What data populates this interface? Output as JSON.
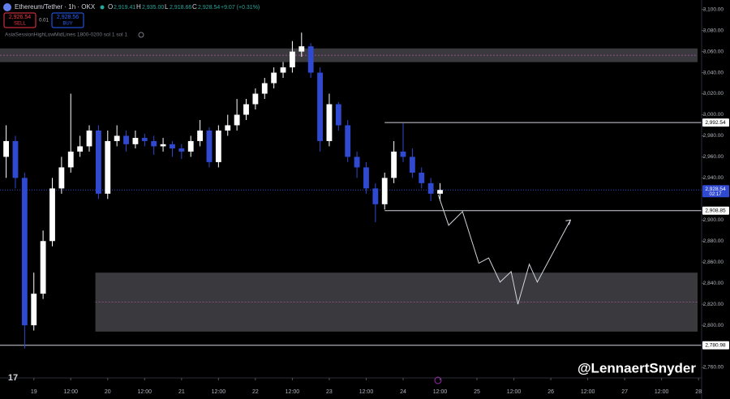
{
  "header": {
    "symbol": "Ethereum/Tether · 1h · OKX",
    "o_label": "O",
    "o": "2,919.41",
    "h_label": "H",
    "h": "2,935.00",
    "l_label": "L",
    "l": "2,918.66",
    "c_label": "C",
    "c": "2,928.54",
    "change": "+9.07 (+0.31%)"
  },
  "trade": {
    "sell_price": "2,926.54",
    "sell_label": "SELL",
    "qty": "0.01",
    "buy_price": "2,928.56",
    "buy_label": "BUY"
  },
  "indicator": "AsiaSessionHighLowMidLines 1800-0200 sol 1 sol 1",
  "watermark": "@LennaertSnyder",
  "chart_data": {
    "type": "candlestick",
    "x": [
      -9,
      -6,
      -3,
      0,
      3,
      6,
      9,
      12,
      15,
      18,
      21,
      24,
      27,
      30,
      33,
      36,
      39,
      42,
      45,
      48,
      51,
      54,
      57,
      60,
      63,
      66,
      69,
      72,
      75,
      78,
      81,
      84,
      87,
      90,
      93,
      96,
      99,
      102,
      105,
      108,
      111,
      114,
      117,
      120,
      123,
      126,
      129,
      132
    ],
    "open": [
      2960,
      2975,
      2940,
      2800,
      2830,
      2880,
      2930,
      2950,
      2965,
      2970,
      2985,
      2925,
      2975,
      2980,
      2972,
      2978,
      2975,
      2970,
      2972,
      2968,
      2965,
      2975,
      2985,
      2955,
      2985,
      2990,
      3000,
      3010,
      3020,
      3030,
      3040,
      3045,
      3060,
      3065,
      3040,
      2975,
      3010,
      2990,
      2960,
      2950,
      2930,
      2915,
      2940,
      2965,
      2960,
      2945,
      2935,
      2925
    ],
    "high": [
      2990,
      2980,
      2945,
      2850,
      2890,
      2940,
      2960,
      3020,
      2980,
      2990,
      2990,
      2985,
      2990,
      2985,
      2985,
      2982,
      2980,
      2978,
      2975,
      2972,
      2980,
      2995,
      2988,
      2990,
      3000,
      3015,
      3015,
      3025,
      3035,
      3045,
      3050,
      3070,
      3078,
      3068,
      3045,
      3020,
      3012,
      2995,
      2965,
      2955,
      2935,
      2945,
      2975,
      2992,
      2968,
      2950,
      2940,
      2935
    ],
    "low": [
      2940,
      2930,
      2778,
      2795,
      2825,
      2875,
      2925,
      2945,
      2960,
      2965,
      2920,
      2920,
      2970,
      2965,
      2968,
      2970,
      2962,
      2965,
      2960,
      2958,
      2960,
      2970,
      2950,
      2950,
      2980,
      2985,
      2995,
      3005,
      3015,
      3025,
      3035,
      3040,
      3055,
      3035,
      2965,
      2970,
      2985,
      2955,
      2940,
      2925,
      2898,
      2910,
      2935,
      2955,
      2940,
      2930,
      2918,
      2918
    ],
    "close": [
      2975,
      2940,
      2800,
      2830,
      2880,
      2930,
      2950,
      2965,
      2970,
      2985,
      2925,
      2975,
      2980,
      2972,
      2978,
      2975,
      2970,
      2972,
      2968,
      2965,
      2975,
      2985,
      2955,
      2985,
      2990,
      3000,
      3010,
      3020,
      3030,
      3040,
      3045,
      3060,
      3065,
      3040,
      2975,
      3010,
      2990,
      2960,
      2950,
      2930,
      2915,
      2940,
      2965,
      2960,
      2945,
      2935,
      2925,
      2928.54
    ],
    "up_color": "#ffffff",
    "down_color": "#2f49d1",
    "xlim": [
      -11,
      217
    ],
    "ylim": [
      2750,
      3109
    ],
    "xticks": [
      {
        "value": 0,
        "label": "19"
      },
      {
        "value": 12,
        "label": "12:00"
      },
      {
        "value": 24,
        "label": "20"
      },
      {
        "value": 36,
        "label": "12:00"
      },
      {
        "value": 48,
        "label": "21"
      },
      {
        "value": 60,
        "label": "12:00"
      },
      {
        "value": 72,
        "label": "22"
      },
      {
        "value": 84,
        "label": "12:00"
      },
      {
        "value": 96,
        "label": "23"
      },
      {
        "value": 108,
        "label": "12:00"
      },
      {
        "value": 120,
        "label": "24"
      },
      {
        "value": 132,
        "label": "12:00"
      },
      {
        "value": 144,
        "label": "25"
      },
      {
        "value": 156,
        "label": "12:00"
      },
      {
        "value": 168,
        "label": "26"
      },
      {
        "value": 180,
        "label": "12:00"
      },
      {
        "value": 192,
        "label": "27"
      },
      {
        "value": 204,
        "label": "12:00"
      },
      {
        "value": 216,
        "label": "28"
      }
    ],
    "yticks": [
      {
        "value": 3100,
        "label": "3,100.00"
      },
      {
        "value": 3080,
        "label": "3,080.00"
      },
      {
        "value": 3060,
        "label": "3,060.00"
      },
      {
        "value": 3040,
        "label": "3,040.00"
      },
      {
        "value": 3020,
        "label": "3,020.00"
      },
      {
        "value": 3000,
        "label": "3,000.00"
      },
      {
        "value": 2980,
        "label": "2,980.00"
      },
      {
        "value": 2960,
        "label": "2,960.00"
      },
      {
        "value": 2940,
        "label": "2,940.00"
      },
      {
        "value": 2900,
        "label": "2,900.00"
      },
      {
        "value": 2880,
        "label": "2,880.00"
      },
      {
        "value": 2860,
        "label": "2,860.00"
      },
      {
        "value": 2840,
        "label": "2,840.00"
      },
      {
        "value": 2820,
        "label": "2,820.00"
      },
      {
        "value": 2800,
        "label": "2,800.00"
      },
      {
        "value": 2760,
        "label": "2,760.00"
      }
    ],
    "levels": [
      {
        "value": 2992.54,
        "label": "2,992.54",
        "start": 114
      },
      {
        "value": 2908.85,
        "label": "2,908.85",
        "start": 114
      },
      {
        "value": 2780.98,
        "label": "2,780.98",
        "start": -11
      }
    ],
    "last_price": {
      "value": 2928.54,
      "label": "2,928.54",
      "countdown": "02:17"
    },
    "zones": [
      {
        "start": -11,
        "low": 3050,
        "high": 3063
      },
      {
        "start": 20,
        "low": 2794,
        "high": 2850
      }
    ],
    "projection": {
      "x": [
        131.4,
        134.8,
        139.3,
        144.6,
        147.8,
        151.5,
        155.1,
        157.3,
        161,
        163.6,
        174.4
      ],
      "y": [
        2924,
        2895,
        2908,
        2859,
        2864,
        2841,
        2851,
        2820,
        2858,
        2841,
        2900
      ]
    }
  }
}
